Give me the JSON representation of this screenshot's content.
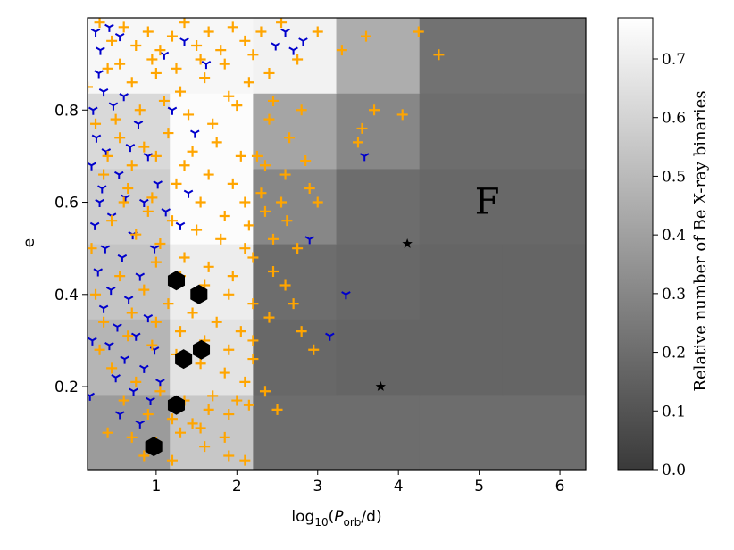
{
  "chart_data": {
    "type": "scatter",
    "title": "",
    "xlabel_main": "log",
    "xlabel_sub": "10",
    "xlabel_paren_open": "(",
    "xlabel_p": "P",
    "xlabel_p_sub": "orb",
    "xlabel_tail": "/d)",
    "ylabel": "e",
    "xlim": [
      0.15,
      6.32
    ],
    "ylim": [
      0.02,
      1.0
    ],
    "xticks": [
      1,
      2,
      3,
      4,
      5,
      6
    ],
    "yticks": [
      0.2,
      0.4,
      0.6,
      0.8
    ],
    "xtick_labels": [
      "1",
      "2",
      "3",
      "4",
      "5",
      "6"
    ],
    "ytick_labels": [
      "0.2",
      "0.4",
      "0.6",
      "0.8"
    ],
    "grid": false,
    "annotation": "F",
    "annotation_pos": [
      5.1,
      0.6
    ],
    "colorbar": {
      "label": "Relative number of Be X-ray binaries",
      "min": 0.0,
      "max": 0.77,
      "ticks": [
        0.0,
        0.1,
        0.2,
        0.3,
        0.4,
        0.5,
        0.6,
        0.7
      ],
      "tick_labels": [
        "0.0",
        "0.1",
        "0.2",
        "0.3",
        "0.4",
        "0.5",
        "0.6",
        "0.7"
      ],
      "colormap": "grey (dark #3a3a3a to white)"
    },
    "heatmap": {
      "x_edges": [
        0.15,
        1.17,
        2.2,
        3.23,
        4.26,
        5.29,
        6.32
      ],
      "y_edges": [
        0.02,
        0.183,
        0.347,
        0.51,
        0.673,
        0.837,
        1.0
      ],
      "values_rows_bottom_to_top": [
        [
          0.38,
          0.55,
          0.2,
          0.2,
          0.2,
          0.2
        ],
        [
          0.48,
          0.66,
          0.18,
          0.17,
          0.17,
          0.17
        ],
        [
          0.54,
          0.7,
          0.2,
          0.18,
          0.17,
          0.17
        ],
        [
          0.58,
          0.76,
          0.3,
          0.2,
          0.18,
          0.18
        ],
        [
          0.62,
          0.76,
          0.42,
          0.3,
          0.2,
          0.2
        ],
        [
          0.74,
          0.74,
          0.72,
          0.45,
          0.22,
          0.22
        ]
      ]
    },
    "series": [
      {
        "marker": "hexagon",
        "color": "#000000",
        "points": [
          [
            0.97,
            0.07
          ],
          [
            1.25,
            0.16
          ],
          [
            1.34,
            0.26
          ],
          [
            1.56,
            0.28
          ],
          [
            1.53,
            0.4
          ],
          [
            1.25,
            0.43
          ]
        ]
      },
      {
        "marker": "star",
        "color": "#000000",
        "points": [
          [
            4.11,
            0.51
          ],
          [
            3.78,
            0.2
          ]
        ]
      },
      {
        "marker": "tri_down",
        "color": "#0000cc",
        "points": [
          [
            0.25,
            0.97
          ],
          [
            0.31,
            0.93
          ],
          [
            0.42,
            0.98
          ],
          [
            0.29,
            0.88
          ],
          [
            0.55,
            0.96
          ],
          [
            0.35,
            0.84
          ],
          [
            0.22,
            0.8
          ],
          [
            0.47,
            0.81
          ],
          [
            0.26,
            0.74
          ],
          [
            0.38,
            0.71
          ],
          [
            0.2,
            0.68
          ],
          [
            0.54,
            0.66
          ],
          [
            0.33,
            0.63
          ],
          [
            0.62,
            0.61
          ],
          [
            0.45,
            0.57
          ],
          [
            0.24,
            0.55
          ],
          [
            0.71,
            0.53
          ],
          [
            0.37,
            0.5
          ],
          [
            0.58,
            0.48
          ],
          [
            0.28,
            0.45
          ],
          [
            0.8,
            0.44
          ],
          [
            0.44,
            0.41
          ],
          [
            0.66,
            0.39
          ],
          [
            0.35,
            0.37
          ],
          [
            0.9,
            0.35
          ],
          [
            0.52,
            0.33
          ],
          [
            0.75,
            0.31
          ],
          [
            0.42,
            0.29
          ],
          [
            0.98,
            0.28
          ],
          [
            0.61,
            0.26
          ],
          [
            0.85,
            0.24
          ],
          [
            0.5,
            0.22
          ],
          [
            1.05,
            0.21
          ],
          [
            0.72,
            0.19
          ],
          [
            0.93,
            0.17
          ],
          [
            0.18,
            0.18
          ],
          [
            0.6,
            0.83
          ],
          [
            0.78,
            0.77
          ],
          [
            0.9,
            0.7
          ],
          [
            1.02,
            0.64
          ],
          [
            1.12,
            0.58
          ],
          [
            0.85,
            0.6
          ],
          [
            1.3,
            0.55
          ],
          [
            1.4,
            0.62
          ],
          [
            1.48,
            0.75
          ],
          [
            1.62,
            0.9
          ],
          [
            1.35,
            0.95
          ],
          [
            1.1,
            0.92
          ],
          [
            2.48,
            0.94
          ],
          [
            2.6,
            0.97
          ],
          [
            2.7,
            0.93
          ],
          [
            2.82,
            0.95
          ],
          [
            2.9,
            0.52
          ],
          [
            3.15,
            0.31
          ],
          [
            3.35,
            0.4
          ],
          [
            3.58,
            0.7
          ],
          [
            0.3,
            0.6
          ],
          [
            0.21,
            0.3
          ],
          [
            0.68,
            0.72
          ],
          [
            1.2,
            0.8
          ],
          [
            0.98,
            0.5
          ],
          [
            0.55,
            0.14
          ],
          [
            0.8,
            0.12
          ]
        ]
      },
      {
        "marker": "plus",
        "color": "#ffa500",
        "points": [
          [
            0.3,
            0.99
          ],
          [
            0.45,
            0.95
          ],
          [
            0.6,
            0.98
          ],
          [
            0.75,
            0.94
          ],
          [
            0.9,
            0.97
          ],
          [
            1.05,
            0.93
          ],
          [
            1.2,
            0.96
          ],
          [
            1.35,
            0.99
          ],
          [
            1.5,
            0.94
          ],
          [
            1.65,
            0.97
          ],
          [
            1.8,
            0.93
          ],
          [
            1.95,
            0.98
          ],
          [
            2.1,
            0.95
          ],
          [
            2.3,
            0.97
          ],
          [
            2.55,
            0.99
          ],
          [
            2.75,
            0.91
          ],
          [
            3.0,
            0.97
          ],
          [
            3.3,
            0.93
          ],
          [
            3.6,
            0.96
          ],
          [
            4.25,
            0.97
          ],
          [
            4.5,
            0.92
          ],
          [
            0.4,
            0.89
          ],
          [
            0.7,
            0.86
          ],
          [
            1.0,
            0.88
          ],
          [
            1.3,
            0.84
          ],
          [
            1.6,
            0.87
          ],
          [
            1.9,
            0.83
          ],
          [
            2.15,
            0.86
          ],
          [
            2.45,
            0.82
          ],
          [
            2.8,
            0.8
          ],
          [
            3.7,
            0.8
          ],
          [
            4.05,
            0.79
          ],
          [
            3.55,
            0.76
          ],
          [
            3.5,
            0.73
          ],
          [
            0.25,
            0.77
          ],
          [
            0.55,
            0.74
          ],
          [
            0.85,
            0.72
          ],
          [
            1.15,
            0.75
          ],
          [
            1.45,
            0.71
          ],
          [
            1.75,
            0.73
          ],
          [
            2.05,
            0.7
          ],
          [
            2.35,
            0.68
          ],
          [
            2.6,
            0.66
          ],
          [
            2.9,
            0.63
          ],
          [
            2.3,
            0.62
          ],
          [
            2.55,
            0.6
          ],
          [
            3.0,
            0.6
          ],
          [
            0.35,
            0.66
          ],
          [
            0.65,
            0.63
          ],
          [
            0.95,
            0.61
          ],
          [
            1.25,
            0.64
          ],
          [
            1.55,
            0.6
          ],
          [
            1.85,
            0.57
          ],
          [
            2.15,
            0.55
          ],
          [
            2.45,
            0.52
          ],
          [
            2.75,
            0.5
          ],
          [
            2.2,
            0.48
          ],
          [
            2.45,
            0.45
          ],
          [
            2.6,
            0.42
          ],
          [
            2.7,
            0.38
          ],
          [
            2.8,
            0.32
          ],
          [
            2.95,
            0.28
          ],
          [
            2.5,
            0.15
          ],
          [
            0.45,
            0.56
          ],
          [
            0.75,
            0.53
          ],
          [
            1.05,
            0.51
          ],
          [
            1.35,
            0.48
          ],
          [
            1.65,
            0.46
          ],
          [
            1.95,
            0.44
          ],
          [
            0.55,
            0.44
          ],
          [
            0.85,
            0.41
          ],
          [
            1.15,
            0.38
          ],
          [
            1.45,
            0.36
          ],
          [
            1.75,
            0.34
          ],
          [
            2.05,
            0.32
          ],
          [
            0.35,
            0.34
          ],
          [
            0.65,
            0.31
          ],
          [
            0.95,
            0.29
          ],
          [
            1.25,
            0.27
          ],
          [
            1.55,
            0.25
          ],
          [
            1.85,
            0.23
          ],
          [
            2.1,
            0.21
          ],
          [
            0.45,
            0.24
          ],
          [
            0.75,
            0.21
          ],
          [
            1.05,
            0.19
          ],
          [
            1.35,
            0.17
          ],
          [
            1.65,
            0.15
          ],
          [
            1.9,
            0.14
          ],
          [
            2.0,
            0.17
          ],
          [
            0.4,
            0.1
          ],
          [
            0.7,
            0.09
          ],
          [
            1.0,
            0.08
          ],
          [
            1.3,
            0.1
          ],
          [
            1.6,
            0.07
          ],
          [
            1.9,
            0.05
          ],
          [
            2.1,
            0.04
          ],
          [
            0.85,
            0.05
          ],
          [
            1.2,
            0.04
          ],
          [
            1.45,
            0.12
          ],
          [
            1.7,
            0.18
          ],
          [
            2.15,
            0.16
          ],
          [
            2.35,
            0.19
          ],
          [
            0.5,
            0.78
          ],
          [
            0.8,
            0.8
          ],
          [
            1.1,
            0.82
          ],
          [
            1.4,
            0.79
          ],
          [
            1.7,
            0.77
          ],
          [
            2.0,
            0.81
          ],
          [
            0.2,
            0.5
          ],
          [
            0.25,
            0.4
          ],
          [
            0.3,
            0.28
          ],
          [
            0.6,
            0.6
          ],
          [
            0.9,
            0.58
          ],
          [
            1.2,
            0.56
          ],
          [
            1.5,
            0.54
          ],
          [
            1.8,
            0.52
          ],
          [
            2.1,
            0.5
          ],
          [
            1.0,
            0.47
          ],
          [
            1.3,
            0.44
          ],
          [
            1.6,
            0.42
          ],
          [
            1.9,
            0.4
          ],
          [
            2.2,
            0.38
          ],
          [
            0.7,
            0.36
          ],
          [
            1.0,
            0.34
          ],
          [
            1.3,
            0.32
          ],
          [
            1.6,
            0.3
          ],
          [
            1.9,
            0.28
          ],
          [
            2.2,
            0.26
          ],
          [
            0.6,
            0.17
          ],
          [
            0.9,
            0.14
          ],
          [
            1.2,
            0.13
          ],
          [
            1.55,
            0.11
          ],
          [
            1.85,
            0.09
          ],
          [
            0.55,
            0.9
          ],
          [
            0.95,
            0.91
          ],
          [
            1.25,
            0.89
          ],
          [
            1.55,
            0.91
          ],
          [
            1.85,
            0.9
          ],
          [
            2.2,
            0.92
          ],
          [
            2.4,
            0.88
          ],
          [
            0.15,
            0.85
          ],
          [
            0.4,
            0.7
          ],
          [
            0.7,
            0.68
          ],
          [
            1.0,
            0.7
          ],
          [
            1.35,
            0.68
          ],
          [
            1.65,
            0.66
          ],
          [
            1.95,
            0.64
          ],
          [
            2.25,
            0.7
          ],
          [
            2.65,
            0.74
          ],
          [
            2.4,
            0.78
          ],
          [
            2.85,
            0.69
          ],
          [
            2.1,
            0.6
          ],
          [
            2.35,
            0.58
          ],
          [
            2.62,
            0.56
          ],
          [
            2.4,
            0.35
          ],
          [
            2.2,
            0.3
          ]
        ]
      }
    ]
  }
}
